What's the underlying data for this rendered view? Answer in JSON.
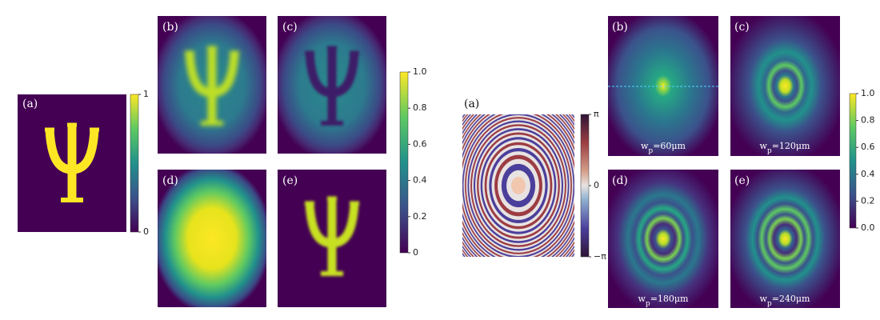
{
  "left": {
    "panels": [
      {
        "label": "(a)"
      },
      {
        "label": "(b)"
      },
      {
        "label": "(c)"
      },
      {
        "label": "(d)"
      },
      {
        "label": "(e)"
      }
    ],
    "colorbar_a": {
      "lim": [
        0,
        1
      ],
      "ticks": [
        0,
        1
      ]
    },
    "colorbar": {
      "lim": [
        0,
        1
      ],
      "ticks": [
        0,
        0.2,
        0.4,
        0.6,
        0.8,
        {
          "value": 1,
          "label": "1.0"
        }
      ]
    }
  },
  "right": {
    "panels": [
      {
        "label": "(a)"
      },
      {
        "label": "(b)",
        "caption": {
          "symbol": "w",
          "subscript": "p",
          "text": "=60μm"
        }
      },
      {
        "label": "(c)",
        "caption": {
          "symbol": "w",
          "subscript": "p",
          "text": "=120μm"
        }
      },
      {
        "label": "(d)",
        "caption": {
          "symbol": "w",
          "subscript": "p",
          "text": "=180μm"
        }
      },
      {
        "label": "(e)",
        "caption": {
          "symbol": "w",
          "subscript": "p",
          "text": "=240μm"
        }
      }
    ],
    "phase_colorbar": {
      "lim": [
        -3.1416,
        3.1416
      ],
      "ticks": [
        {
          "value": -3.1416,
          "label": "−π"
        },
        0,
        {
          "value": 3.1416,
          "label": "π"
        }
      ]
    },
    "colorbar": {
      "lim": [
        0,
        1
      ],
      "ticks": [
        {
          "value": 0,
          "label": "0.0"
        },
        0.2,
        0.4,
        0.6,
        0.8,
        {
          "value": 1,
          "label": "1.0"
        }
      ]
    }
  }
}
